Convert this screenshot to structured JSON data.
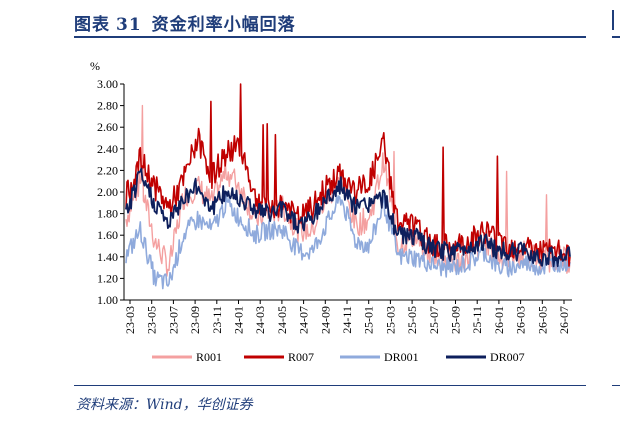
{
  "figure": {
    "label": "图表",
    "number": "31",
    "title": "资金利率小幅回落",
    "source": "资料来源：Wind，华创证券"
  },
  "colors": {
    "R001": "#f4a0a0",
    "R007": "#c00000",
    "DR001": "#8faadc",
    "DR007": "#0d1f5c"
  },
  "chart_data": {
    "type": "line",
    "ylabel": "%",
    "ylim": [
      1.0,
      3.0
    ],
    "yticks": [
      "1.00",
      "1.20",
      "1.40",
      "1.60",
      "1.80",
      "2.00",
      "2.20",
      "2.40",
      "2.60",
      "2.80",
      "3.00"
    ],
    "xticks": [
      "23-03",
      "23-05",
      "23-07",
      "23-09",
      "23-11",
      "24-01",
      "24-03",
      "24-05",
      "24-07",
      "24-09",
      "24-11",
      "25-01",
      "25-03",
      "25-05",
      "25-07",
      "25-09",
      "25-11",
      "26-01",
      "26-03",
      "26-05",
      "26-07"
    ],
    "x_start": "2023-03",
    "x_end": "2026-08",
    "legend": [
      "R001",
      "R007",
      "DR001",
      "DR007"
    ],
    "legend_position": "bottom",
    "series": [
      {
        "name": "R001",
        "values": [
          1.75,
          2.1,
          1.55,
          1.3,
          1.95,
          2.05,
          1.9,
          2.2,
          2.05,
          1.75,
          1.8,
          1.85,
          1.65,
          1.65,
          1.95,
          2.1,
          1.7,
          1.75,
          2.3,
          1.5,
          1.6,
          1.45,
          1.4,
          1.35,
          1.4,
          1.55,
          1.4,
          1.4,
          1.45,
          1.35,
          1.4,
          1.35
        ]
      },
      {
        "name": "R007",
        "values": [
          1.95,
          2.3,
          2.05,
          1.85,
          2.1,
          2.5,
          2.15,
          2.35,
          2.45,
          1.95,
          1.85,
          1.9,
          1.75,
          1.85,
          2.05,
          2.15,
          2.0,
          2.1,
          2.45,
          1.7,
          1.7,
          1.55,
          1.5,
          1.5,
          1.55,
          1.65,
          1.55,
          1.5,
          1.5,
          1.45,
          1.45,
          1.4
        ]
      },
      {
        "name": "DR001",
        "values": [
          1.4,
          1.65,
          1.2,
          1.15,
          1.6,
          1.75,
          1.65,
          1.9,
          1.75,
          1.6,
          1.65,
          1.65,
          1.45,
          1.45,
          1.7,
          1.95,
          1.55,
          1.5,
          1.9,
          1.4,
          1.4,
          1.35,
          1.3,
          1.3,
          1.35,
          1.45,
          1.3,
          1.3,
          1.35,
          1.3,
          1.35,
          1.35
        ]
      },
      {
        "name": "DR007",
        "values": [
          1.8,
          2.15,
          1.9,
          1.7,
          1.95,
          2.05,
          1.85,
          2.0,
          1.95,
          1.85,
          1.8,
          1.85,
          1.7,
          1.75,
          1.95,
          2.05,
          1.85,
          1.9,
          1.95,
          1.6,
          1.6,
          1.5,
          1.45,
          1.45,
          1.5,
          1.55,
          1.45,
          1.45,
          1.45,
          1.4,
          1.4,
          1.4
        ]
      }
    ]
  }
}
